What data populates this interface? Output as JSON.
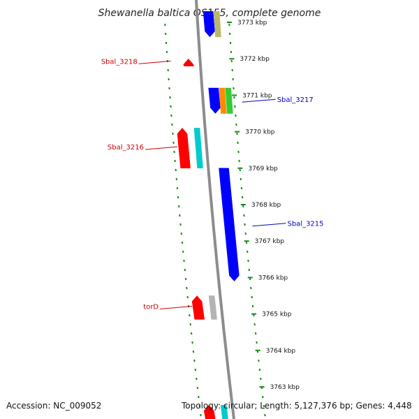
{
  "title": "Shewanella baltica OS155, complete genome",
  "accession": "Accession: NC_009052",
  "topology": "Topology: circular; Length: 5,127,376 bp; Genes: 4,448",
  "colors": {
    "backbone": "#8c8c8c",
    "dotted_track": "#1a8a1a",
    "forward_label": "#0000cc",
    "reverse_label": "#cc0000",
    "blue": "#0000ff",
    "red": "#ff0000",
    "khaki": "#bdb76b",
    "orange": "#ff8c00",
    "green": "#33cc33",
    "cyan": "#00cccc",
    "gray": "#b4b4b4"
  },
  "ticks": [
    {
      "kbp": 3773,
      "label": "3773 kbp"
    },
    {
      "kbp": 3772,
      "label": "3772 kbp"
    },
    {
      "kbp": 3771,
      "label": "3771 kbp"
    },
    {
      "kbp": 3770,
      "label": "3770 kbp"
    },
    {
      "kbp": 3769,
      "label": "3769 kbp"
    },
    {
      "kbp": 3768,
      "label": "3768 kbp"
    },
    {
      "kbp": 3767,
      "label": "3767 kbp"
    },
    {
      "kbp": 3766,
      "label": "3766 kbp"
    },
    {
      "kbp": 3765,
      "label": "3765 kbp"
    },
    {
      "kbp": 3764,
      "label": "3764 kbp"
    },
    {
      "kbp": 3763,
      "label": "3763 kbp"
    }
  ],
  "genes": [
    {
      "kind": "cds",
      "strand": 1,
      "start": 3772.6,
      "end": 3773.3,
      "color": "blue"
    },
    {
      "kind": "rna",
      "strand": 1,
      "start": 3772.6,
      "end": 3773.3,
      "color": "khaki"
    },
    {
      "kind": "cds",
      "strand": -1,
      "start": 3771.8,
      "end": 3772.0,
      "color": "red",
      "label": "Sbal_3218"
    },
    {
      "kind": "cds",
      "strand": 1,
      "start": 3770.5,
      "end": 3771.2,
      "color": "blue"
    },
    {
      "kind": "rna",
      "strand": 1,
      "start": 3770.5,
      "end": 3771.2,
      "color": "orange",
      "label": "Sbal_3217"
    },
    {
      "kind": "rna",
      "strand": 1,
      "start": 3770.5,
      "end": 3771.2,
      "color": "green"
    },
    {
      "kind": "rna",
      "strand": -1,
      "start": 3769.0,
      "end": 3770.1,
      "color": "cyan",
      "label": "Sbal_3216"
    },
    {
      "kind": "cds",
      "strand": -1,
      "start": 3769.0,
      "end": 3770.1,
      "color": "red"
    },
    {
      "kind": "cds",
      "strand": 1,
      "start": 3765.9,
      "end": 3769.0,
      "color": "blue",
      "label": "Sbal_3215"
    },
    {
      "kind": "rna",
      "strand": -1,
      "start": 3764.85,
      "end": 3765.5,
      "color": "gray"
    },
    {
      "kind": "cds",
      "strand": -1,
      "start": 3764.85,
      "end": 3765.5,
      "color": "red",
      "label": "torD"
    },
    {
      "kind": "rna",
      "strand": -1,
      "start": 3762.0,
      "end": 3762.5,
      "color": "cyan"
    },
    {
      "kind": "cds",
      "strand": -1,
      "start": 3762.0,
      "end": 3762.5,
      "color": "red"
    }
  ]
}
